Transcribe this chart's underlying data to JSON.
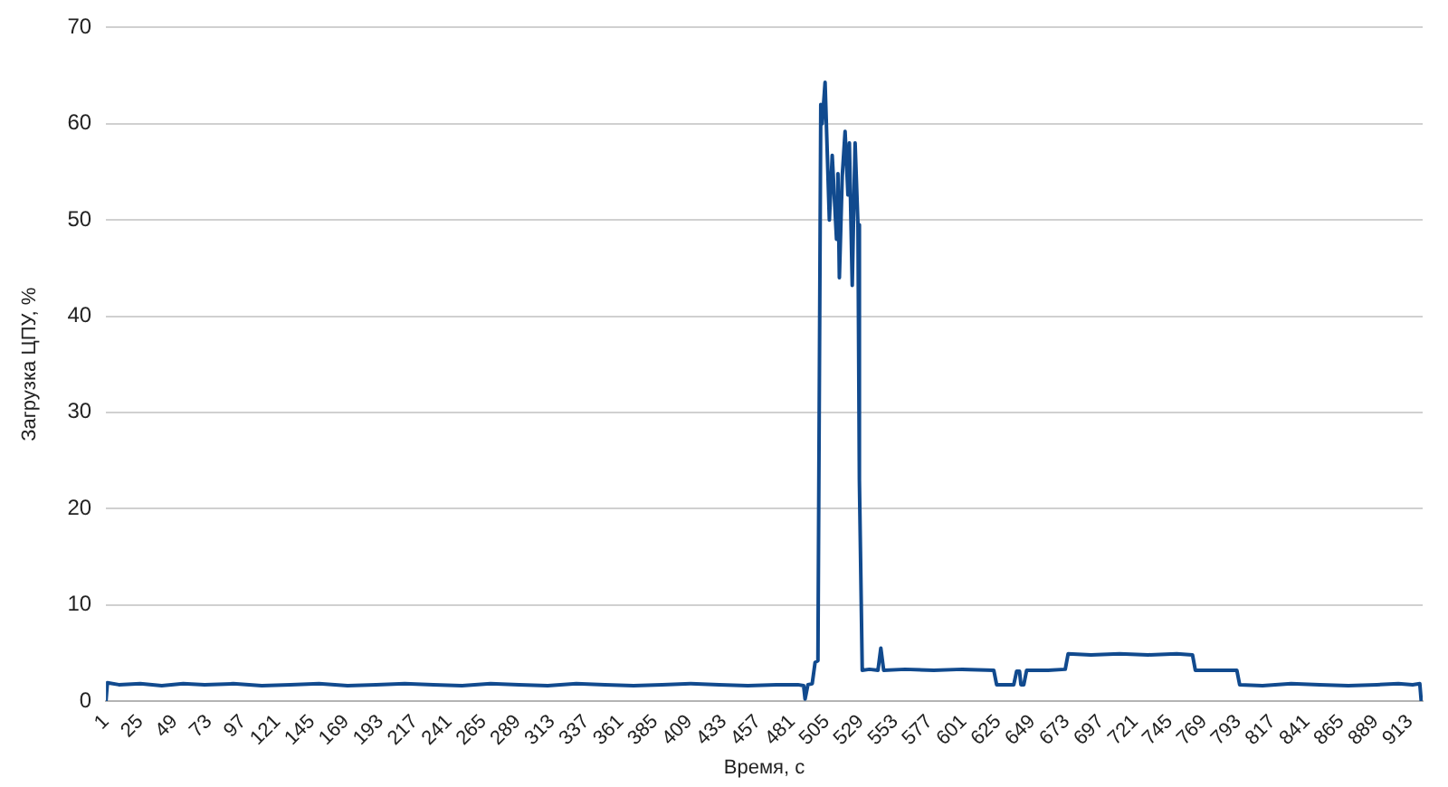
{
  "chart_data": {
    "type": "line",
    "xlabel": "Время, с",
    "ylabel": "Загрузка ЦПУ, %",
    "xlim": [
      1,
      922
    ],
    "xticks": [
      1,
      25,
      49,
      73,
      97,
      121,
      145,
      169,
      193,
      217,
      241,
      265,
      289,
      313,
      337,
      361,
      385,
      409,
      433,
      457,
      481,
      505,
      529,
      553,
      577,
      601,
      625,
      649,
      673,
      697,
      721,
      745,
      769,
      793,
      817,
      841,
      865,
      889,
      913
    ],
    "ylim": [
      0,
      70
    ],
    "yticks": [
      0,
      10,
      20,
      30,
      40,
      50,
      60,
      70
    ],
    "grid": "y",
    "legend": false,
    "marker": "none",
    "line_style": "solid",
    "series": [
      {
        "color": "#114a8e",
        "x": [
          1,
          2,
          10,
          25,
          40,
          55,
          70,
          90,
          110,
          130,
          150,
          170,
          190,
          210,
          230,
          250,
          270,
          290,
          310,
          330,
          350,
          370,
          390,
          410,
          430,
          450,
          470,
          485,
          489,
          490,
          492,
          495,
          497,
          499,
          501,
          502,
          504,
          507,
          509,
          512,
          513,
          514,
          516,
          518,
          520,
          521,
          523,
          524,
          525,
          527,
          528,
          530,
          535,
          541,
          543,
          545,
          560,
          580,
          600,
          622,
          624,
          636,
          638,
          640,
          641,
          643,
          645,
          660,
          672,
          674,
          690,
          710,
          730,
          750,
          761,
          763,
          780,
          792,
          794,
          810,
          830,
          850,
          870,
          890,
          905,
          915,
          920,
          921
        ],
        "values": [
          0,
          1.9,
          1.7,
          1.8,
          1.6,
          1.8,
          1.7,
          1.8,
          1.6,
          1.7,
          1.8,
          1.6,
          1.7,
          1.8,
          1.7,
          1.6,
          1.8,
          1.7,
          1.6,
          1.8,
          1.7,
          1.6,
          1.7,
          1.8,
          1.7,
          1.6,
          1.7,
          1.7,
          1.6,
          0.2,
          1.7,
          1.8,
          4,
          4.2,
          62,
          60,
          64.3,
          50,
          56.7,
          48,
          54.8,
          44,
          54.5,
          59.2,
          52.6,
          58,
          43.2,
          50.7,
          58,
          49.5,
          23,
          3.2,
          3.3,
          3.2,
          5.5,
          3.2,
          3.3,
          3.2,
          3.3,
          3.2,
          1.7,
          1.7,
          3.1,
          3.1,
          1.7,
          1.7,
          3.2,
          3.2,
          3.3,
          4.9,
          4.8,
          4.9,
          4.8,
          4.9,
          4.8,
          3.2,
          3.2,
          3.2,
          1.7,
          1.6,
          1.8,
          1.7,
          1.6,
          1.7,
          1.8,
          1.7,
          1.8,
          0
        ]
      }
    ]
  }
}
